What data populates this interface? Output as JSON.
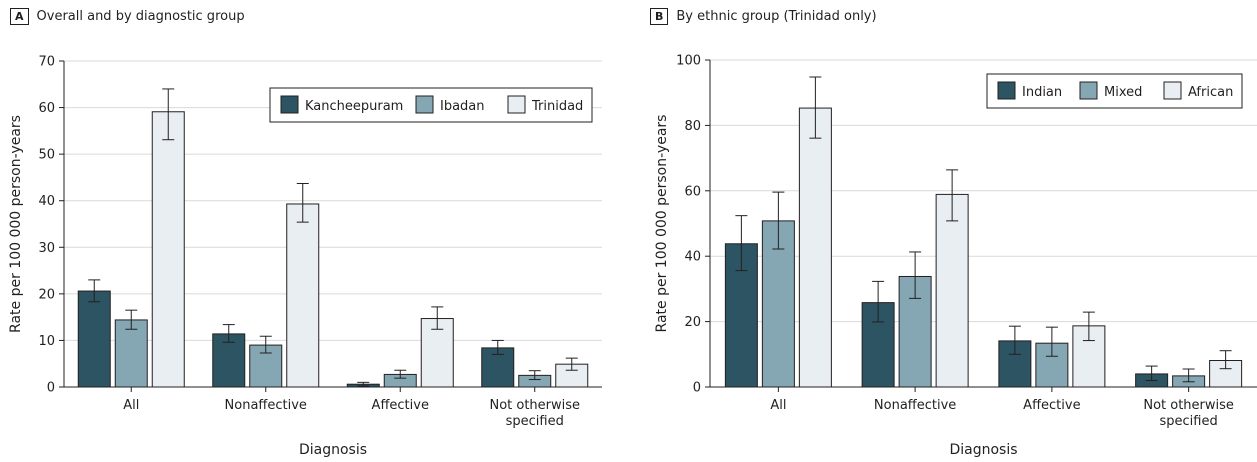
{
  "colors": {
    "dark": "#2d5462",
    "mid": "#85a7b4",
    "light": "#e8eef2",
    "grid": "#d9d9d9",
    "axis": "#231f20"
  },
  "chart_data": [
    {
      "panel_letter": "A",
      "title": "Overall and by diagnostic group",
      "type": "bar",
      "xlabel": "Diagnosis",
      "ylabel": "Rate per 100 000 person-years",
      "ylim": [
        0,
        70
      ],
      "yticks": [
        0,
        10,
        20,
        30,
        40,
        50,
        60,
        70
      ],
      "grid": true,
      "legend_position": "top-right",
      "categories": [
        [
          "All"
        ],
        [
          "Nonaffective"
        ],
        [
          "Affective"
        ],
        [
          "Not otherwise",
          "specified"
        ]
      ],
      "series": [
        {
          "name": "Kancheepuram",
          "color": "#2d5462",
          "values": [
            20.6,
            11.4,
            0.6,
            8.4
          ],
          "ci_low": [
            18.3,
            9.6,
            0.2,
            7.0
          ],
          "ci_high": [
            23.0,
            13.4,
            1.0,
            10.0
          ]
        },
        {
          "name": "Ibadan",
          "color": "#85a7b4",
          "values": [
            14.4,
            9.0,
            2.7,
            2.5
          ],
          "ci_low": [
            12.4,
            7.3,
            1.9,
            1.6
          ],
          "ci_high": [
            16.5,
            10.9,
            3.6,
            3.5
          ]
        },
        {
          "name": "Trinidad",
          "color": "#e8eef2",
          "values": [
            59.1,
            39.3,
            14.7,
            4.9
          ],
          "ci_low": [
            53.1,
            35.4,
            12.4,
            3.6
          ],
          "ci_high": [
            64.0,
            43.7,
            17.2,
            6.2
          ]
        }
      ]
    },
    {
      "panel_letter": "B",
      "title": "By ethnic group (Trinidad only)",
      "type": "bar",
      "xlabel": "Diagnosis",
      "ylabel": "Rate per 100 000 person-years",
      "ylim": [
        0,
        100
      ],
      "yticks": [
        0,
        20,
        40,
        60,
        80,
        100
      ],
      "grid": true,
      "legend_position": "top-right",
      "categories": [
        [
          "All"
        ],
        [
          "Nonaffective"
        ],
        [
          "Affective"
        ],
        [
          "Not otherwise",
          "specified"
        ]
      ],
      "series": [
        {
          "name": "Indian",
          "color": "#2d5462",
          "values": [
            43.8,
            25.8,
            14.1,
            4.0
          ],
          "ci_low": [
            35.6,
            19.9,
            10.0,
            2.0
          ],
          "ci_high": [
            52.4,
            32.3,
            18.6,
            6.4
          ]
        },
        {
          "name": "Mixed",
          "color": "#85a7b4",
          "values": [
            50.8,
            33.8,
            13.4,
            3.4
          ],
          "ci_low": [
            42.2,
            27.1,
            9.4,
            1.6
          ],
          "ci_high": [
            59.6,
            41.3,
            18.3,
            5.5
          ]
        },
        {
          "name": "African",
          "color": "#e8eef2",
          "values": [
            85.3,
            58.9,
            18.7,
            8.1
          ],
          "ci_low": [
            76.1,
            50.8,
            14.2,
            5.6
          ],
          "ci_high": [
            94.8,
            66.4,
            22.9,
            11.1
          ]
        }
      ]
    }
  ]
}
